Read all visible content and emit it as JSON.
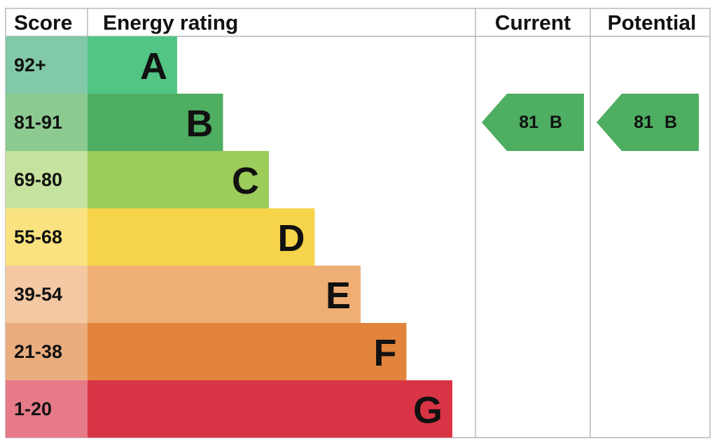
{
  "header": {
    "score": "Score",
    "energy_rating": "Energy rating",
    "current": "Current",
    "potential": "Potential"
  },
  "bands": [
    {
      "score": "92+",
      "letter": "A",
      "color": "#52c483",
      "score_color": "#82c9a7"
    },
    {
      "score": "81-91",
      "letter": "B",
      "color": "#4eae61",
      "score_color": "#8cca92"
    },
    {
      "score": "69-80",
      "letter": "C",
      "color": "#9ccc5a",
      "score_color": "#c5e29e"
    },
    {
      "score": "55-68",
      "letter": "D",
      "color": "#f6d44a",
      "score_color": "#f9e27f"
    },
    {
      "score": "39-54",
      "letter": "E",
      "color": "#efae73",
      "score_color": "#f3c8a2"
    },
    {
      "score": "21-38",
      "letter": "F",
      "color": "#e2843c",
      "score_color": "#eaad7e"
    },
    {
      "score": "1-20",
      "letter": "G",
      "color": "#d93445",
      "score_color": "#e67a89"
    }
  ],
  "current": {
    "score": 81,
    "letter": "B"
  },
  "potential": {
    "score": 81,
    "letter": "B"
  }
}
